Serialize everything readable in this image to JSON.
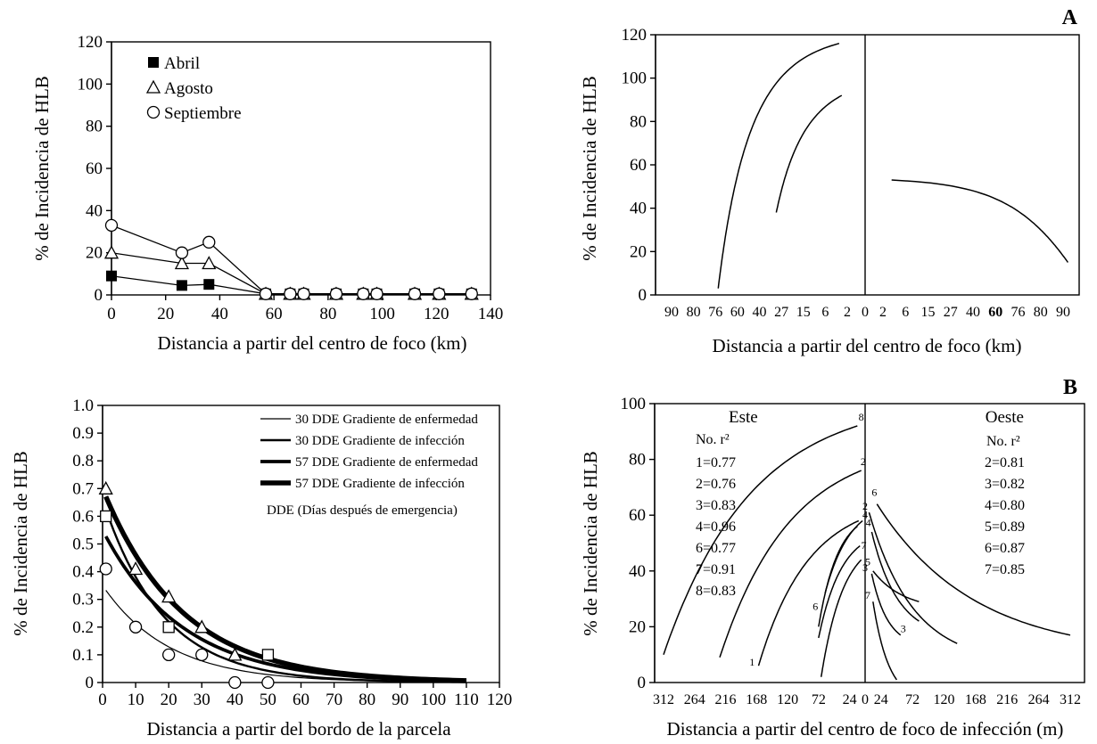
{
  "chart_data": [
    {
      "id": "p1",
      "type": "line",
      "xlabel": "Distancia a partir del centro de foco (km)",
      "ylabel": "% de Incidencia de HLB",
      "xlim": [
        0,
        140
      ],
      "ylim": [
        0,
        120
      ],
      "xticks": [
        "0",
        "20",
        "40",
        "60",
        "80",
        "100",
        "120",
        "140"
      ],
      "yticks": [
        "0",
        "20",
        "40",
        "60",
        "80",
        "100",
        "120"
      ],
      "legend": [
        "Abril",
        "Agosto",
        "Septiembre"
      ],
      "series": [
        {
          "name": "Abril",
          "marker": "square-filled",
          "x": [
            0,
            26,
            36,
            57,
            66,
            71,
            83,
            93,
            98,
            112,
            121,
            133
          ],
          "y": [
            9,
            4.5,
            5,
            0.5,
            0.5,
            0.5,
            0.5,
            0.5,
            0.5,
            0.5,
            0.5,
            0.5
          ]
        },
        {
          "name": "Agosto",
          "marker": "triangle-open",
          "x": [
            0,
            26,
            36,
            57,
            66,
            71,
            83,
            93,
            98,
            112,
            121,
            133
          ],
          "y": [
            20,
            15,
            15,
            0.5,
            0.5,
            0.5,
            0.5,
            0.5,
            0.5,
            0.5,
            0.5,
            0.5
          ]
        },
        {
          "name": "Septiembre",
          "marker": "circle-open",
          "x": [
            0,
            26,
            36,
            57,
            66,
            71,
            83,
            93,
            98,
            112,
            121,
            133
          ],
          "y": [
            33,
            20,
            25,
            0.5,
            0.5,
            0.5,
            0.5,
            0.5,
            0.5,
            0.5,
            0.5,
            0.5
          ]
        }
      ]
    },
    {
      "id": "p2",
      "type": "line",
      "panel_tag": "A",
      "xlabel": "Distancia a partir del centro de foco (km)",
      "ylabel": "% de Incidencia de HLB",
      "ylim": [
        0,
        120
      ],
      "yticks": [
        "0",
        "20",
        "40",
        "60",
        "80",
        "100",
        "120"
      ],
      "xticks_left": [
        "90",
        "80",
        "76",
        "60",
        "40",
        "27",
        "15",
        "6",
        "2"
      ],
      "xtick_center": "0",
      "xticks_right": [
        "2",
        "6",
        "15",
        "27",
        "40",
        "60",
        "76",
        "80",
        "90"
      ],
      "bold_tick": "60",
      "curves": [
        {
          "side": "left",
          "start": 27,
          "end": 0.8,
          "y_start": 3,
          "y_end": 116,
          "k": 0.7
        },
        {
          "side": "left",
          "start": 6.5,
          "end": 0.7,
          "y_start": 38,
          "y_end": 92,
          "k": 0.7
        },
        {
          "side": "right",
          "start": 0.8,
          "end": 89,
          "y_start": 53,
          "y_end": 15,
          "k": 0.55
        }
      ]
    },
    {
      "id": "p3",
      "type": "line",
      "xlabel": "Distancia a partir del bordo de la parcela",
      "ylabel": "% de Incidencia de HLB",
      "xlim": [
        0,
        120
      ],
      "ylim": [
        0,
        1.0
      ],
      "xticks": [
        "0",
        "10",
        "20",
        "30",
        "40",
        "50",
        "60",
        "70",
        "80",
        "90",
        "100",
        "110",
        "120"
      ],
      "yticks": [
        "0",
        "0.1",
        "0.2",
        "0.3",
        "0.4",
        "0.5",
        "0.6",
        "0.7",
        "0.8",
        "0.9",
        "1.0"
      ],
      "legend": [
        "30 DDE Gradiente de enfermedad",
        "30 DDE Gradiente de infección",
        "57 DDE Gradiente de enfermedad",
        "57 DDE Gradiente de infección"
      ],
      "note": "DDE (Días después de emergencia)",
      "fits": [
        {
          "name": "30 DDE Gradiente de enfermedad",
          "a": 0.35,
          "b": 0.05,
          "x_start": 1,
          "x_end": 110,
          "width": 1.2
        },
        {
          "name": "30 DDE Gradiente de infección",
          "a": 0.66,
          "b": 0.055,
          "x_start": 2,
          "x_end": 110,
          "width": 2.4
        },
        {
          "name": "57 DDE Gradiente de enfermedad",
          "a": 0.55,
          "b": 0.042,
          "x_start": 1,
          "x_end": 110,
          "width": 3.8
        },
        {
          "name": "57 DDE Gradiente de infección",
          "a": 0.7,
          "b": 0.042,
          "x_start": 1,
          "x_end": 110,
          "width": 5.5
        }
      ],
      "observed": [
        {
          "marker": "circle-open",
          "x": [
            1,
            10,
            20,
            30,
            40,
            50
          ],
          "y": [
            0.41,
            0.2,
            0.1,
            0.1,
            0.0,
            0.0
          ]
        },
        {
          "marker": "square-open",
          "x": [
            1,
            20,
            50
          ],
          "y": [
            0.6,
            0.2,
            0.1
          ]
        },
        {
          "marker": "triangle-open",
          "x": [
            1,
            10,
            20,
            30,
            40
          ],
          "y": [
            0.7,
            0.41,
            0.31,
            0.2,
            0.1
          ]
        }
      ]
    },
    {
      "id": "p4",
      "type": "line",
      "panel_tag": "B",
      "xlabel": "Distancia a partir del centro de foco de infección (m)",
      "ylabel": "% de Incidencia de HLB",
      "ylim": [
        0,
        100
      ],
      "yticks": [
        "0",
        "20",
        "40",
        "60",
        "80",
        "100"
      ],
      "xticks_left": [
        "312",
        "264",
        "216",
        "168",
        "120",
        "72",
        "24"
      ],
      "xtick_center": "0",
      "xticks_right": [
        "24",
        "72",
        "120",
        "168",
        "216",
        "264",
        "312"
      ],
      "este": {
        "title": "Este",
        "header": "No. r²",
        "r2": [
          "1=0.77",
          "2=0.76",
          "3=0.83",
          "4=0.96",
          "6=0.77",
          "7=0.91",
          "8=0.83"
        ],
        "curves": [
          {
            "label": "1",
            "start": 312,
            "end": 12,
            "y_start": 10,
            "y_end": 92,
            "k": 2.2
          },
          {
            "label": "1",
            "start": 165,
            "end": 10,
            "y_start": 6,
            "y_end": 58,
            "k": 2
          },
          {
            "label": "2",
            "start": 225,
            "end": 6,
            "y_start": 9,
            "y_end": 76,
            "k": 2
          },
          {
            "label": "6",
            "start": 72,
            "end": 12,
            "y_start": 20,
            "y_end": 56,
            "k": 2
          },
          {
            "label": "4",
            "start": 62,
            "end": 4,
            "y_start": 32,
            "y_end": 58,
            "k": 1.5
          },
          {
            "label": "7",
            "start": 72,
            "end": 8,
            "y_start": 16,
            "y_end": 49,
            "k": 1.8
          },
          {
            "label": "3",
            "start": 68,
            "end": 6,
            "y_start": 2,
            "y_end": 44,
            "k": 1.8
          }
        ]
      },
      "oeste": {
        "title": "Oeste",
        "header": "No. r²",
        "r2": [
          "2=0.81",
          "3=0.82",
          "4=0.80",
          "5=0.89",
          "6=0.87",
          "7=0.85"
        ],
        "curves": [
          {
            "label": "2",
            "start": 6,
            "end": 140,
            "y_start": 61,
            "y_end": 14,
            "k": 2
          },
          {
            "label": "6",
            "start": 18,
            "end": 312,
            "y_start": 64,
            "y_end": 17,
            "k": 2
          },
          {
            "label": "4",
            "start": 10,
            "end": 82,
            "y_start": 54,
            "y_end": 22,
            "k": 1.8
          },
          {
            "label": "5",
            "start": 12,
            "end": 82,
            "y_start": 40,
            "y_end": 29,
            "k": 1.5
          },
          {
            "label": "3",
            "start": 10,
            "end": 54,
            "y_start": 39,
            "y_end": 17,
            "k": 1.8
          },
          {
            "label": "7",
            "start": 12,
            "end": 48,
            "y_start": 29,
            "y_end": 1,
            "k": 1.5
          }
        ]
      },
      "curve_labels": [
        {
          "text": "8",
          "side": "left",
          "x": 6,
          "y": 94
        },
        {
          "text": "2",
          "side": "left",
          "x": 3,
          "y": 78
        },
        {
          "text": "4",
          "side": "left",
          "x": 0,
          "y": 59
        },
        {
          "text": "7",
          "side": "left",
          "x": 2,
          "y": 48
        },
        {
          "text": "3",
          "side": "left",
          "x": 0,
          "y": 40
        },
        {
          "text": "6",
          "side": "left",
          "x": 77,
          "y": 26
        },
        {
          "text": "1",
          "side": "left",
          "x": 175,
          "y": 6
        },
        {
          "text": "6",
          "side": "right",
          "x": 14,
          "y": 67
        },
        {
          "text": "2",
          "side": "right",
          "x": 0,
          "y": 62
        },
        {
          "text": "4",
          "side": "right",
          "x": 5,
          "y": 56
        },
        {
          "text": "5",
          "side": "right",
          "x": 4,
          "y": 42
        },
        {
          "text": "7",
          "side": "right",
          "x": 4,
          "y": 30
        },
        {
          "text": "3",
          "side": "right",
          "x": 58,
          "y": 18
        }
      ]
    }
  ]
}
